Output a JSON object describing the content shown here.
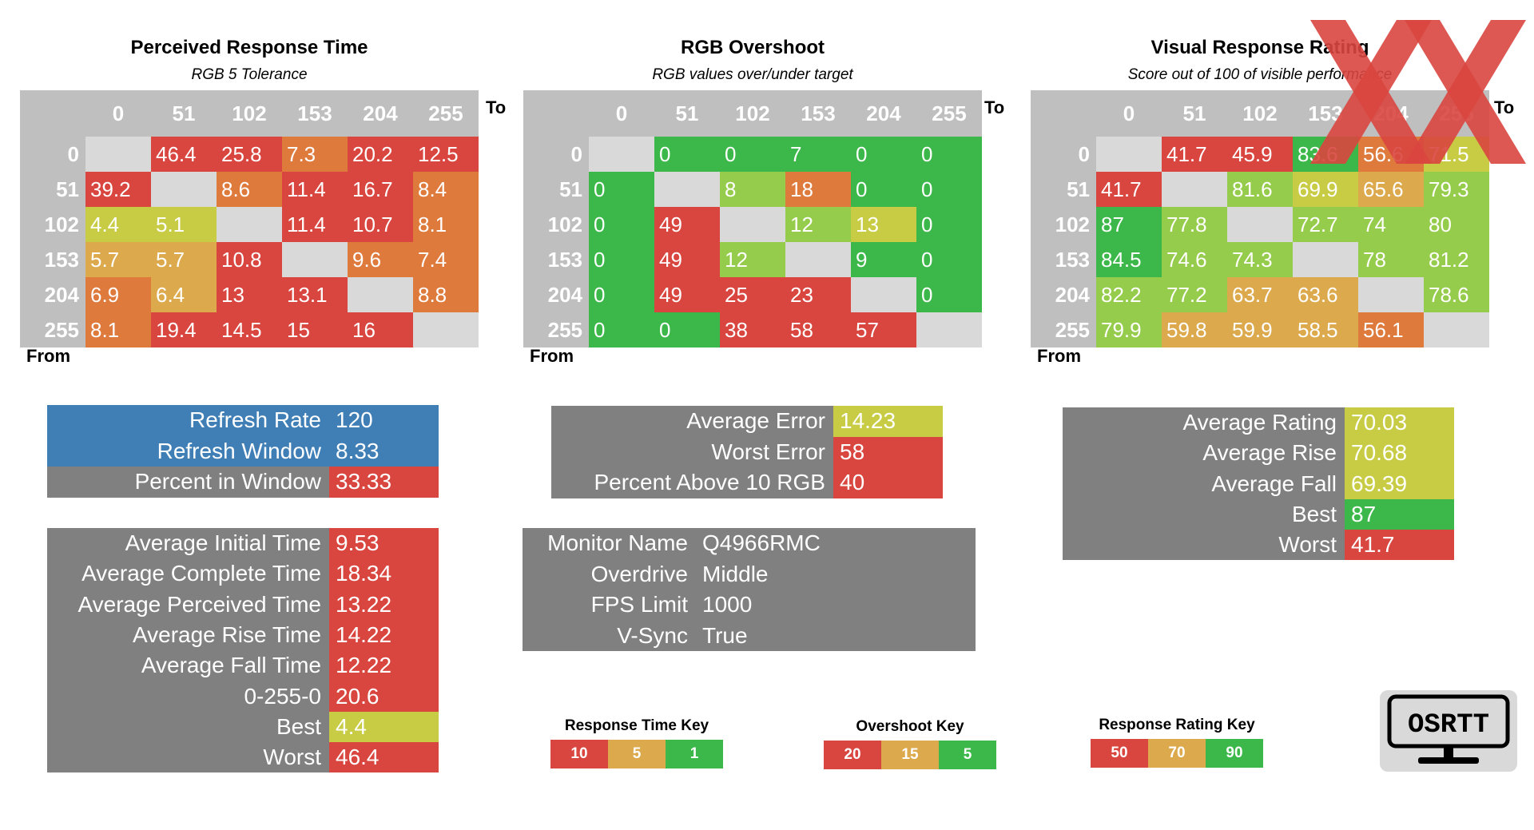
{
  "colors": {
    "red": "#d9463f",
    "orange": "#df7a3d",
    "amber": "#dca94c",
    "yellow": "#c8cc44",
    "lightgreen": "#96cc4c",
    "green": "#3cb84a",
    "blue": "#3f7fb6",
    "grey": "#808080"
  },
  "heatmaps": [
    {
      "title": "Perceived Response Time",
      "subtitle": "RGB 5 Tolerance",
      "axis_to": "To",
      "axis_from": "From",
      "columns": [
        "0",
        "51",
        "102",
        "153",
        "204",
        "255"
      ],
      "rows": [
        {
          "label": "0",
          "cells": [
            "",
            "46.4",
            "25.8",
            "7.3",
            "20.2",
            "12.5"
          ],
          "colors": [
            "diag",
            "red",
            "red",
            "orange",
            "red",
            "red"
          ]
        },
        {
          "label": "51",
          "cells": [
            "39.2",
            "",
            "8.6",
            "11.4",
            "16.7",
            "8.4"
          ],
          "colors": [
            "red",
            "diag",
            "orange",
            "red",
            "red",
            "orange"
          ]
        },
        {
          "label": "102",
          "cells": [
            "4.4",
            "5.1",
            "",
            "11.4",
            "10.7",
            "8.1"
          ],
          "colors": [
            "yellow",
            "yellow",
            "diag",
            "red",
            "red",
            "orange"
          ]
        },
        {
          "label": "153",
          "cells": [
            "5.7",
            "5.7",
            "10.8",
            "",
            "9.6",
            "7.4"
          ],
          "colors": [
            "amber",
            "amber",
            "red",
            "diag",
            "orange",
            "orange"
          ]
        },
        {
          "label": "204",
          "cells": [
            "6.9",
            "6.4",
            "13",
            "13.1",
            "",
            "8.8"
          ],
          "colors": [
            "orange",
            "amber",
            "red",
            "red",
            "diag",
            "orange"
          ]
        },
        {
          "label": "255",
          "cells": [
            "8.1",
            "19.4",
            "14.5",
            "15",
            "16",
            ""
          ],
          "colors": [
            "orange",
            "red",
            "red",
            "red",
            "red",
            "diag"
          ]
        }
      ]
    },
    {
      "title": "RGB Overshoot",
      "subtitle": "RGB values over/under target",
      "axis_to": "To",
      "axis_from": "From",
      "columns": [
        "0",
        "51",
        "102",
        "153",
        "204",
        "255"
      ],
      "rows": [
        {
          "label": "0",
          "cells": [
            "",
            "0",
            "0",
            "7",
            "0",
            "0"
          ],
          "colors": [
            "diag",
            "green",
            "green",
            "green",
            "green",
            "green"
          ]
        },
        {
          "label": "51",
          "cells": [
            "0",
            "",
            "8",
            "18",
            "0",
            "0"
          ],
          "colors": [
            "green",
            "diag",
            "lightgreen",
            "orange",
            "green",
            "green"
          ]
        },
        {
          "label": "102",
          "cells": [
            "0",
            "49",
            "",
            "12",
            "13",
            "0"
          ],
          "colors": [
            "green",
            "red",
            "diag",
            "lightgreen",
            "yellow",
            "green"
          ]
        },
        {
          "label": "153",
          "cells": [
            "0",
            "49",
            "12",
            "",
            "9",
            "0"
          ],
          "colors": [
            "green",
            "red",
            "lightgreen",
            "diag",
            "green",
            "green"
          ]
        },
        {
          "label": "204",
          "cells": [
            "0",
            "49",
            "25",
            "23",
            "",
            "0"
          ],
          "colors": [
            "green",
            "red",
            "red",
            "red",
            "diag",
            "green"
          ]
        },
        {
          "label": "255",
          "cells": [
            "0",
            "0",
            "38",
            "58",
            "57",
            ""
          ],
          "colors": [
            "green",
            "green",
            "red",
            "red",
            "red",
            "diag"
          ]
        }
      ]
    },
    {
      "title": "Visual Response Rating",
      "subtitle": "Score out of 100 of visible performance",
      "axis_to": "To",
      "axis_from": "From",
      "columns": [
        "0",
        "51",
        "102",
        "153",
        "204",
        "255"
      ],
      "rows": [
        {
          "label": "0",
          "cells": [
            "",
            "41.7",
            "45.9",
            "83.6",
            "56.6",
            "71.5"
          ],
          "colors": [
            "diag",
            "red",
            "red",
            "green",
            "orange",
            "yellow"
          ]
        },
        {
          "label": "51",
          "cells": [
            "41.7",
            "",
            "81.6",
            "69.9",
            "65.6",
            "79.3"
          ],
          "colors": [
            "red",
            "diag",
            "lightgreen",
            "yellow",
            "amber",
            "lightgreen"
          ]
        },
        {
          "label": "102",
          "cells": [
            "87",
            "77.8",
            "",
            "72.7",
            "74",
            "80"
          ],
          "colors": [
            "green",
            "lightgreen",
            "diag",
            "lightgreen",
            "lightgreen",
            "lightgreen"
          ]
        },
        {
          "label": "153",
          "cells": [
            "84.5",
            "74.6",
            "74.3",
            "",
            "78",
            "81.2"
          ],
          "colors": [
            "green",
            "lightgreen",
            "lightgreen",
            "diag",
            "lightgreen",
            "lightgreen"
          ]
        },
        {
          "label": "204",
          "cells": [
            "82.2",
            "77.2",
            "63.7",
            "63.6",
            "",
            "78.6"
          ],
          "colors": [
            "lightgreen",
            "lightgreen",
            "amber",
            "amber",
            "diag",
            "lightgreen"
          ]
        },
        {
          "label": "255",
          "cells": [
            "79.9",
            "59.8",
            "59.9",
            "58.5",
            "56.1",
            ""
          ],
          "colors": [
            "lightgreen",
            "amber",
            "amber",
            "amber",
            "orange",
            "diag"
          ]
        }
      ]
    }
  ],
  "refresh_stats": [
    {
      "label": "Refresh Rate",
      "value": "120",
      "lbg": "blue",
      "vbg": "blue"
    },
    {
      "label": "Refresh Window",
      "value": "8.33",
      "lbg": "blue",
      "vbg": "blue"
    },
    {
      "label": "Percent in Window",
      "value": "33.33",
      "lbg": "grey",
      "vbg": "red"
    }
  ],
  "time_stats": [
    {
      "label": "Average Initial Time",
      "value": "9.53",
      "vbg": "red"
    },
    {
      "label": "Average Complete Time",
      "value": "18.34",
      "vbg": "red"
    },
    {
      "label": "Average Perceived Time",
      "value": "13.22",
      "vbg": "red"
    },
    {
      "label": "Average Rise Time",
      "value": "14.22",
      "vbg": "red"
    },
    {
      "label": "Average Fall Time",
      "value": "12.22",
      "vbg": "red"
    },
    {
      "label": "0-255-0",
      "value": "20.6",
      "vbg": "red"
    },
    {
      "label": "Best",
      "value": "4.4",
      "vbg": "yellow"
    },
    {
      "label": "Worst",
      "value": "46.4",
      "vbg": "red"
    }
  ],
  "overshoot_stats": [
    {
      "label": "Average Error",
      "value": "14.23",
      "vbg": "yellow"
    },
    {
      "label": "Worst Error",
      "value": "58",
      "vbg": "red"
    },
    {
      "label": "Percent Above 10 RGB",
      "value": "40",
      "vbg": "red"
    }
  ],
  "monitor_info": [
    {
      "label": "Monitor Name",
      "value": "Q4966RMC"
    },
    {
      "label": "Overdrive",
      "value": "Middle"
    },
    {
      "label": "FPS Limit",
      "value": "1000"
    },
    {
      "label": "V-Sync",
      "value": "True"
    }
  ],
  "rating_stats": [
    {
      "label": "Average Rating",
      "value": "70.03",
      "vbg": "yellow"
    },
    {
      "label": "Average Rise",
      "value": "70.68",
      "vbg": "yellow"
    },
    {
      "label": "Average Fall",
      "value": "69.39",
      "vbg": "yellow"
    },
    {
      "label": "Best",
      "value": "87",
      "vbg": "green"
    },
    {
      "label": "Worst",
      "value": "41.7",
      "vbg": "red"
    }
  ],
  "keys": [
    {
      "title": "Response Time Key",
      "values": [
        "10",
        "5",
        "1"
      ],
      "colors": [
        "red",
        "amber",
        "green"
      ]
    },
    {
      "title": "Overshoot Key",
      "values": [
        "20",
        "15",
        "5"
      ],
      "colors": [
        "red",
        "amber",
        "green"
      ]
    },
    {
      "title": "Response Rating Key",
      "values": [
        "50",
        "70",
        "90"
      ],
      "colors": [
        "red",
        "amber",
        "green"
      ]
    }
  ],
  "logo": {
    "text": "OSRTT"
  },
  "chart_data": [
    {
      "type": "heatmap",
      "title": "Perceived Response Time",
      "subtitle": "RGB 5 Tolerance",
      "xlabel": "To",
      "ylabel": "From",
      "x": [
        "0",
        "51",
        "102",
        "153",
        "204",
        "255"
      ],
      "y": [
        "0",
        "51",
        "102",
        "153",
        "204",
        "255"
      ],
      "values": [
        [
          null,
          46.4,
          25.8,
          7.3,
          20.2,
          12.5
        ],
        [
          39.2,
          null,
          8.6,
          11.4,
          16.7,
          8.4
        ],
        [
          4.4,
          5.1,
          null,
          11.4,
          10.7,
          8.1
        ],
        [
          5.7,
          5.7,
          10.8,
          null,
          9.6,
          7.4
        ],
        [
          6.9,
          6.4,
          13,
          13.1,
          null,
          8.8
        ],
        [
          8.1,
          19.4,
          14.5,
          15,
          16,
          null
        ]
      ]
    },
    {
      "type": "heatmap",
      "title": "RGB Overshoot",
      "subtitle": "RGB values over/under target",
      "xlabel": "To",
      "ylabel": "From",
      "x": [
        "0",
        "51",
        "102",
        "153",
        "204",
        "255"
      ],
      "y": [
        "0",
        "51",
        "102",
        "153",
        "204",
        "255"
      ],
      "values": [
        [
          null,
          0,
          0,
          7,
          0,
          0
        ],
        [
          0,
          null,
          8,
          18,
          0,
          0
        ],
        [
          0,
          49,
          null,
          12,
          13,
          0
        ],
        [
          0,
          49,
          12,
          null,
          9,
          0
        ],
        [
          0,
          49,
          25,
          23,
          null,
          0
        ],
        [
          0,
          0,
          38,
          58,
          57,
          null
        ]
      ]
    },
    {
      "type": "heatmap",
      "title": "Visual Response Rating",
      "subtitle": "Score out of 100 of visible performance",
      "xlabel": "To",
      "ylabel": "From",
      "x": [
        "0",
        "51",
        "102",
        "153",
        "204",
        "255"
      ],
      "y": [
        "0",
        "51",
        "102",
        "153",
        "204",
        "255"
      ],
      "values": [
        [
          null,
          41.7,
          45.9,
          83.6,
          56.6,
          71.5
        ],
        [
          41.7,
          null,
          81.6,
          69.9,
          65.6,
          79.3
        ],
        [
          87,
          77.8,
          null,
          72.7,
          74,
          80
        ],
        [
          84.5,
          74.6,
          74.3,
          null,
          78,
          81.2
        ],
        [
          82.2,
          77.2,
          63.7,
          63.6,
          null,
          78.6
        ],
        [
          79.9,
          59.8,
          59.9,
          58.5,
          56.1,
          null
        ]
      ]
    }
  ]
}
